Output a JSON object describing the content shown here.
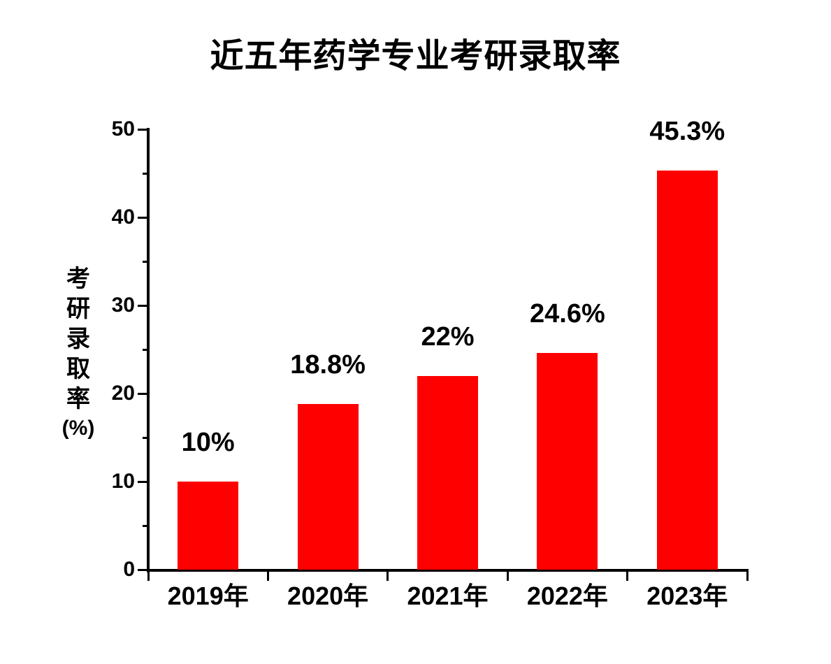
{
  "page": {
    "background_color": "#ffffff",
    "text_color": "#000000"
  },
  "chart_data": {
    "type": "bar",
    "title": "近五年药学专业考研录取率",
    "categories": [
      "2019年",
      "2020年",
      "2021年",
      "2022年",
      "2023年"
    ],
    "values": [
      10,
      18.8,
      22,
      24.6,
      45.3
    ],
    "data_labels": [
      "10%",
      "18.8%",
      "22%",
      "24.6%",
      "45.3%"
    ],
    "ylabel": "考研录取率",
    "ylabel_unit": "(%)",
    "xlabel": "",
    "ylim": [
      0,
      50
    ],
    "yticks_major": [
      0,
      10,
      20,
      30,
      40,
      50
    ],
    "ytick_labels": [
      "0",
      "10",
      "20",
      "30",
      "40",
      "50"
    ],
    "yticks_minor": [
      5,
      15,
      25,
      35,
      45
    ],
    "bar_color": "#ff0000",
    "axis_color": "#000000",
    "grid": false,
    "legend": false
  }
}
